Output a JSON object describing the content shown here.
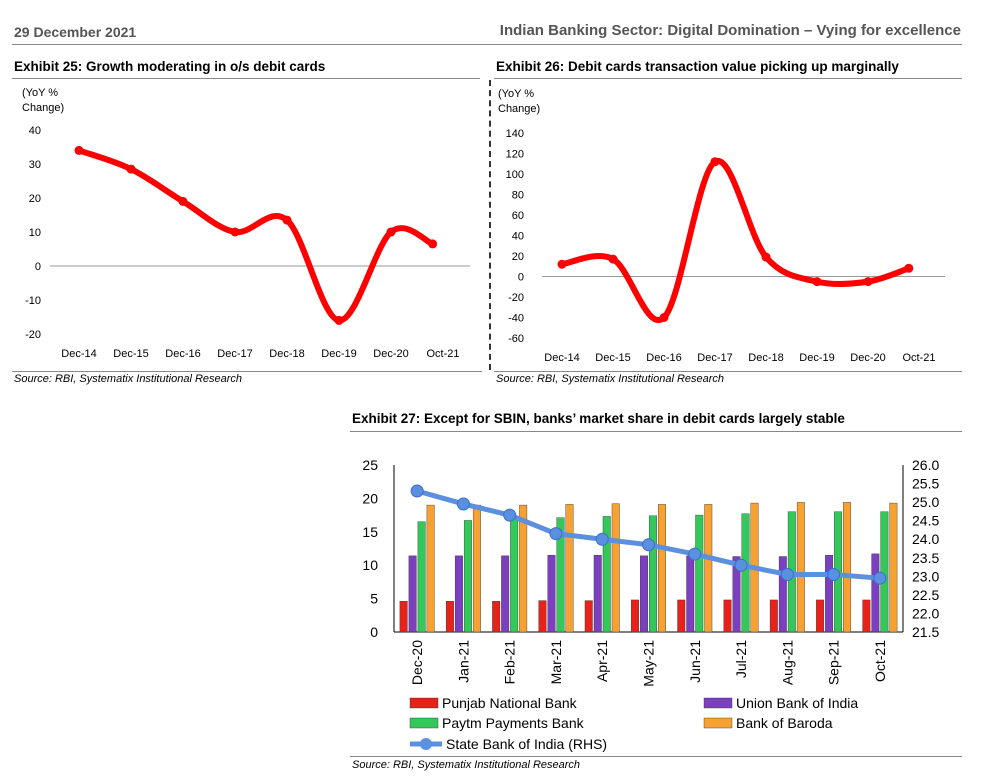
{
  "header": {
    "date": "29 December 2021",
    "title": "Indian Banking Sector: Digital Domination – Vying for excellence"
  },
  "colors": {
    "line_red": "#ff0000",
    "sbi_blue": "#5b8fe0",
    "pnb": "#e8221b",
    "union": "#7b3fbf",
    "paytm": "#32c85a",
    "baroda": "#f6a131"
  },
  "chart_data": [
    {
      "type": "line",
      "title": "Exhibit 25: Growth moderating in o/s debit cards",
      "ylabel": "(YoY % Change)",
      "ylabel_lines": [
        "(YoY %",
        "Change)"
      ],
      "categories": [
        "Dec-14",
        "Dec-15",
        "Dec-16",
        "Dec-17",
        "Dec-18",
        "Dec-19",
        "Dec-20",
        "Oct-21"
      ],
      "x": [
        0,
        1,
        2,
        3,
        4,
        5,
        6,
        6.8
      ],
      "values": [
        34,
        28.5,
        19,
        10,
        13.5,
        -16,
        10,
        6.5
      ],
      "ylim": [
        -20,
        40
      ],
      "yticks": [
        -20,
        -10,
        0,
        10,
        20,
        30,
        40
      ],
      "source": "Source: RBI, Systematix Institutional Research"
    },
    {
      "type": "line",
      "title": "Exhibit 26: Debit cards transaction value picking up marginally",
      "ylabel": "(YoY % Change)",
      "ylabel_lines": [
        "(YoY %",
        "Change)"
      ],
      "categories": [
        "Dec-14",
        "Dec-15",
        "Dec-16",
        "Dec-17",
        "Dec-18",
        "Dec-19",
        "Dec-20",
        "Oct-21"
      ],
      "x": [
        0,
        1,
        2,
        3,
        4,
        5,
        6,
        6.8
      ],
      "values": [
        12,
        17,
        -40,
        112,
        19,
        -5,
        -5,
        8
      ],
      "ylim": [
        -60,
        140
      ],
      "yticks": [
        -60,
        -40,
        -20,
        0,
        20,
        40,
        60,
        80,
        100,
        120,
        140
      ],
      "source": "Source: RBI, Systematix Institutional Research"
    },
    {
      "type": "bar",
      "title": "Exhibit 27: Except for SBIN, banks’ market share in debit cards largely stable",
      "categories": [
        "Dec-20",
        "Jan-21",
        "Feb-21",
        "Mar-21",
        "Apr-21",
        "May-21",
        "Jun-21",
        "Jul-21",
        "Aug-21",
        "Sep-21",
        "Oct-21"
      ],
      "ylim": [
        0,
        25
      ],
      "yticks": [
        0,
        5,
        10,
        15,
        20,
        25
      ],
      "y2lim": [
        21.5,
        26.0
      ],
      "y2ticks": [
        "21.5",
        "22.0",
        "22.5",
        "23.0",
        "23.5",
        "24.0",
        "24.5",
        "25.0",
        "25.5",
        "26.0"
      ],
      "series": [
        {
          "name": "Punjab National Bank",
          "values": [
            4.6,
            4.6,
            4.6,
            4.7,
            4.7,
            4.8,
            4.8,
            4.8,
            4.8,
            4.8,
            4.8
          ]
        },
        {
          "name": "Union Bank of India",
          "values": [
            11.4,
            11.4,
            11.4,
            11.5,
            11.5,
            11.4,
            11.4,
            11.3,
            11.3,
            11.5,
            11.7
          ]
        },
        {
          "name": "Paytm Payments Bank",
          "values": [
            16.5,
            16.7,
            17.0,
            17.1,
            17.3,
            17.4,
            17.5,
            17.7,
            18.0,
            18.0,
            18.0
          ]
        },
        {
          "name": "Bank of Baroda",
          "values": [
            19.0,
            19.0,
            19.0,
            19.1,
            19.2,
            19.1,
            19.1,
            19.3,
            19.4,
            19.4,
            19.3
          ]
        }
      ],
      "line_series": {
        "name": "State Bank of India (RHS)",
        "values": [
          25.3,
          24.95,
          24.65,
          24.15,
          24.0,
          23.85,
          23.6,
          23.3,
          23.05,
          23.05,
          22.95
        ]
      },
      "source": "Source: RBI, Systematix Institutional Research"
    }
  ]
}
